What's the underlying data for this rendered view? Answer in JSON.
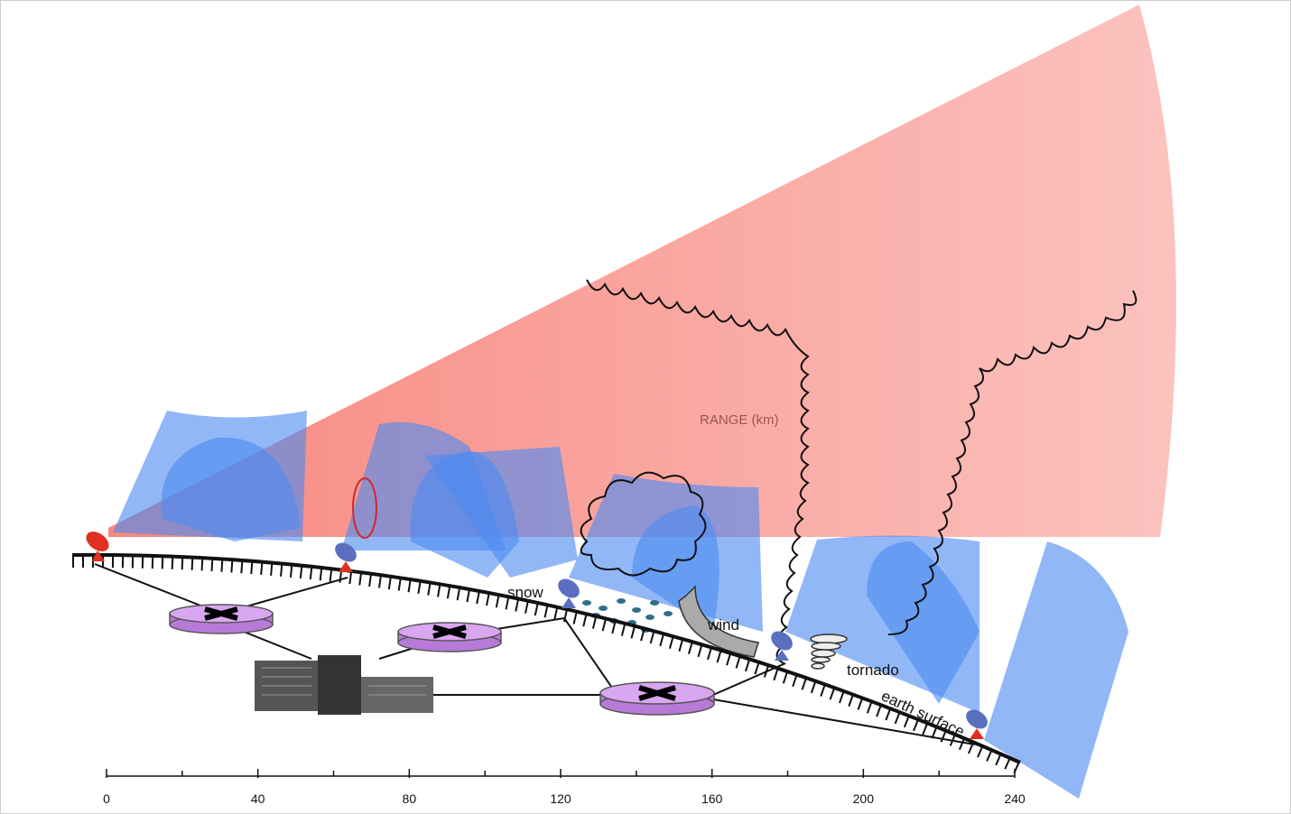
{
  "labels": {
    "range": "RANGE (km)",
    "snow": "snow",
    "wind": "wind",
    "tornado": "tornado",
    "earth": "earth surface"
  },
  "axis": {
    "range": [
      0,
      240
    ],
    "ticks": [
      0,
      40,
      80,
      120,
      160,
      200,
      240
    ],
    "minor_ticks": [
      20,
      60,
      100,
      140,
      180,
      220
    ]
  }
}
